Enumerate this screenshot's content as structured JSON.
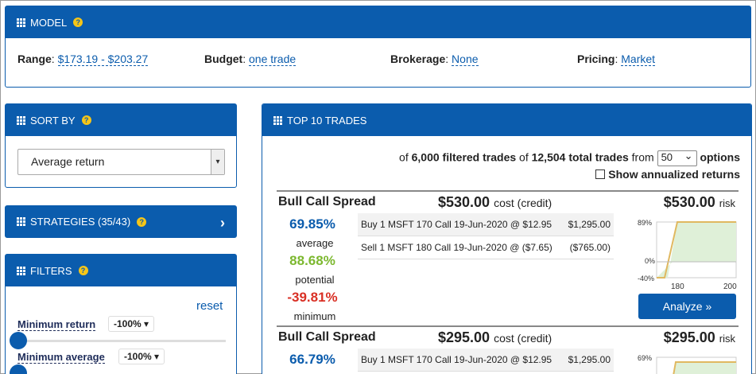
{
  "model": {
    "title": "MODEL",
    "range_label": "Range",
    "range_value": "$173.19 - $203.27",
    "budget_label": "Budget",
    "budget_value": "one trade",
    "brokerage_label": "Brokerage",
    "brokerage_value": "None",
    "pricing_label": "Pricing",
    "pricing_value": "Market"
  },
  "sort": {
    "title": "SORT BY",
    "selected": "Average return"
  },
  "strategies": {
    "title": "STRATEGIES (35/43)"
  },
  "filters": {
    "title": "FILTERS",
    "reset": "reset",
    "min_return_label": "Minimum return",
    "min_return_value": "-100%",
    "min_avg_label": "Minimum average",
    "min_avg_value": "-100%"
  },
  "top": {
    "title": "TOP 10 TRADES",
    "of": "of",
    "filtered": "6,000 filtered trades",
    "of2": "of",
    "total": "12,504 total trades",
    "from": "from",
    "options_count": "50",
    "options": "options",
    "annualized": "Show annualized returns"
  },
  "trades": [
    {
      "name": "Bull Call Spread",
      "cost": "$530.00",
      "cost_suffix": "cost (credit)",
      "risk": "$530.00",
      "risk_suffix": "risk",
      "average": "69.85%",
      "average_label": "average",
      "potential": "88.68%",
      "potential_label": "potential",
      "minimum": "-39.81%",
      "minimum_label": "minimum",
      "legs": [
        {
          "desc": "Buy 1 MSFT 170 Call 19-Jun-2020 @ $12.95",
          "amount": "$1,295.00"
        },
        {
          "desc": "Sell 1 MSFT 180 Call 19-Jun-2020 @ ($7.65)",
          "amount": "($765.00)"
        }
      ],
      "chart": {
        "y_top": "89%",
        "y_zero": "0%",
        "y_bottom": "-40%",
        "x1": "180",
        "x2": "200"
      },
      "analyze": "Analyze »"
    },
    {
      "name": "Bull Call Spread",
      "cost": "$295.00",
      "cost_suffix": "cost (credit)",
      "risk": "$295.00",
      "risk_suffix": "risk",
      "average": "66.79%",
      "legs": [
        {
          "desc": "Buy 1 MSFT 170 Call 19-Jun-2020 @ $12.95",
          "amount": "$1,295.00"
        }
      ],
      "chart": {
        "y_top": "69%"
      }
    }
  ],
  "colors": {
    "accent": "#0b5cad",
    "green": "#7cb82f",
    "red": "#d93025",
    "help": "#f5c518"
  }
}
